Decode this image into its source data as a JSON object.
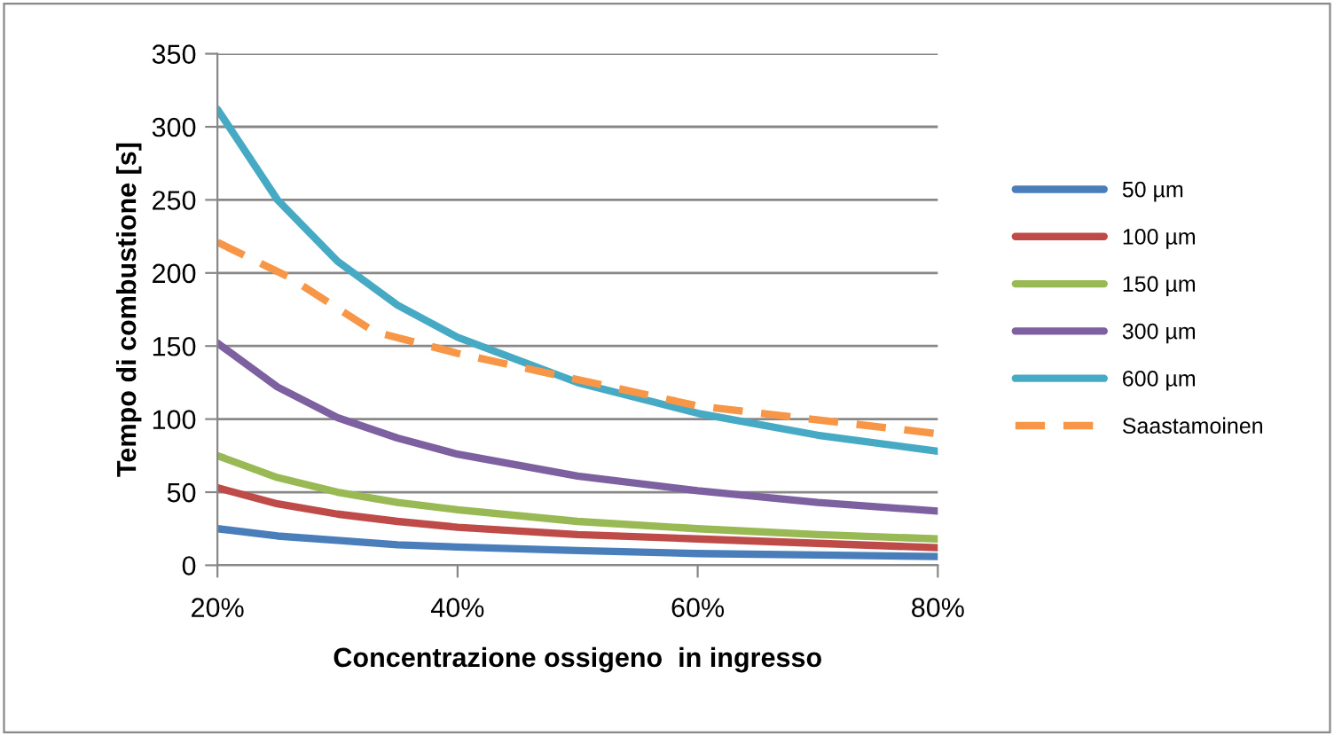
{
  "chart_data": {
    "type": "line",
    "xlabel": "Concentrazione ossigeno  in ingresso",
    "ylabel": "Tempo di combustione [s]",
    "x": [
      20,
      25,
      30,
      35,
      40,
      50,
      60,
      70,
      80
    ],
    "series": [
      {
        "name": "50 µm",
        "color": "#4a7ebb",
        "values": [
          25,
          20,
          17,
          14,
          12.5,
          10,
          8,
          7,
          6
        ]
      },
      {
        "name": "100 µm",
        "color": "#be4b48",
        "values": [
          53,
          42,
          35,
          30,
          26,
          21,
          18,
          15,
          12
        ]
      },
      {
        "name": "150 µm",
        "color": "#98b954",
        "values": [
          75,
          60,
          50,
          43,
          38,
          30,
          25,
          21,
          18
        ]
      },
      {
        "name": "300 µm",
        "color": "#7d60a0",
        "values": [
          152,
          122,
          101,
          87,
          76,
          61,
          51,
          43,
          37
        ]
      },
      {
        "name": "600 µm",
        "color": "#46aac5",
        "values": [
          312,
          250,
          208,
          178,
          156,
          125,
          104,
          89,
          78
        ]
      },
      {
        "name": "Saastamoinen",
        "color": "#f79646",
        "line_style": "dashed",
        "x": [
          20,
          26,
          33,
          40,
          60,
          80
        ],
        "values": [
          221,
          197,
          160,
          145,
          109,
          90
        ]
      }
    ],
    "xlim": [
      20,
      80
    ],
    "xticks": [
      {
        "value": 20,
        "label": "20%"
      },
      {
        "value": 40,
        "label": "40%"
      },
      {
        "value": 60,
        "label": "60%"
      },
      {
        "value": 80,
        "label": "80%"
      }
    ],
    "ylim": [
      0,
      350
    ],
    "yticks": [
      0,
      50,
      100,
      150,
      200,
      250,
      300,
      350
    ],
    "grid": "y",
    "legend": "right",
    "line_style": "solid"
  }
}
